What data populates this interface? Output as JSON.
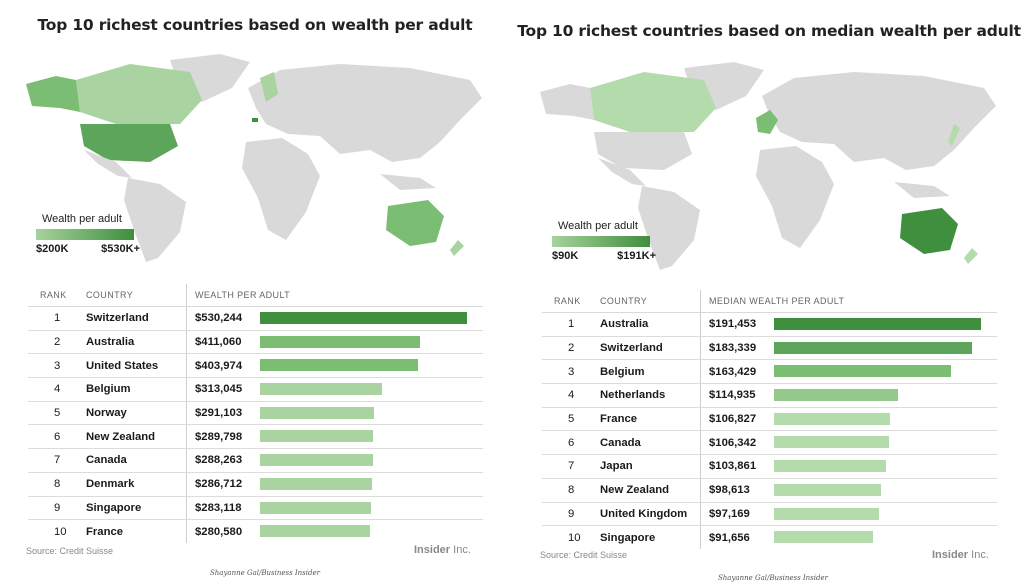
{
  "colors": {
    "land": "#d9d9d9",
    "light": "#a9d3a0",
    "mid": "#7bbd72",
    "dark": "#3f8f3f"
  },
  "left": {
    "title": "Top 10 richest countries based on wealth per adult",
    "legend": {
      "title": "Wealth per adult",
      "min": "$200K",
      "max": "$530K+"
    },
    "headers": {
      "rank": "RANK",
      "country": "COUNTRY",
      "value": "WEALTH PER ADULT"
    },
    "source": "Source: Credit Suisse",
    "brand": "Insider",
    "brand_suffix": "Inc.",
    "credit": "Shayanne Gal/Business Insider"
  },
  "right": {
    "title": "Top 10 richest countries based on median wealth per adult",
    "legend": {
      "title": "Wealth per adult",
      "min": "$90K",
      "max": "$191K+"
    },
    "headers": {
      "rank": "RANK",
      "country": "COUNTRY",
      "value": "MEDIAN WEALTH PER ADULT"
    },
    "source": "Source: Credit Suisse",
    "brand": "Insider",
    "brand_suffix": "Inc.",
    "credit": "Shayanne Gal/Business Insider"
  },
  "chart_data": [
    {
      "type": "bar",
      "title": "Top 10 richest countries based on wealth per adult",
      "categories": [
        "Switzerland",
        "Australia",
        "United States",
        "Belgium",
        "Norway",
        "New Zealand",
        "Canada",
        "Denmark",
        "Singapore",
        "France"
      ],
      "ranks": [
        "1",
        "2",
        "3",
        "4",
        "5",
        "6",
        "7",
        "8",
        "9",
        "10"
      ],
      "values": [
        530244,
        411060,
        403974,
        313045,
        291103,
        289798,
        288263,
        286712,
        283118,
        280580
      ],
      "labels": [
        "$530,244",
        "$411,060",
        "$403,974",
        "$313,045",
        "$291,103",
        "$289,798",
        "$288,263",
        "$286,712",
        "$283,118",
        "$280,580"
      ],
      "bar_colors": [
        "#3f8f3f",
        "#7bbd72",
        "#7bbd72",
        "#a9d3a0",
        "#a9d3a0",
        "#a9d3a0",
        "#a9d3a0",
        "#a9d3a0",
        "#a9d3a0",
        "#a9d3a0"
      ]
    },
    {
      "type": "bar",
      "title": "Top 10 richest countries based on median wealth per adult",
      "categories": [
        "Australia",
        "Switzerland",
        "Belgium",
        "Netherlands",
        "France",
        "Canada",
        "Japan",
        "New Zealand",
        "United Kingdom",
        "Singapore"
      ],
      "ranks": [
        "1",
        "2",
        "3",
        "4",
        "5",
        "6",
        "7",
        "8",
        "9",
        "10"
      ],
      "values": [
        191453,
        183339,
        163429,
        114935,
        106827,
        106342,
        103861,
        98613,
        97169,
        91656
      ],
      "labels": [
        "$191,453",
        "$183,339",
        "$163,429",
        "$114,935",
        "$106,827",
        "$106,342",
        "$103,861",
        "$98,613",
        "$97,169",
        "$91,656"
      ],
      "bar_colors": [
        "#3f8f3f",
        "#5da55a",
        "#7bbd72",
        "#94c98b",
        "#b3dbab",
        "#b3dbab",
        "#b3dbab",
        "#b3dbab",
        "#b3dbab",
        "#b3dbab"
      ]
    }
  ]
}
